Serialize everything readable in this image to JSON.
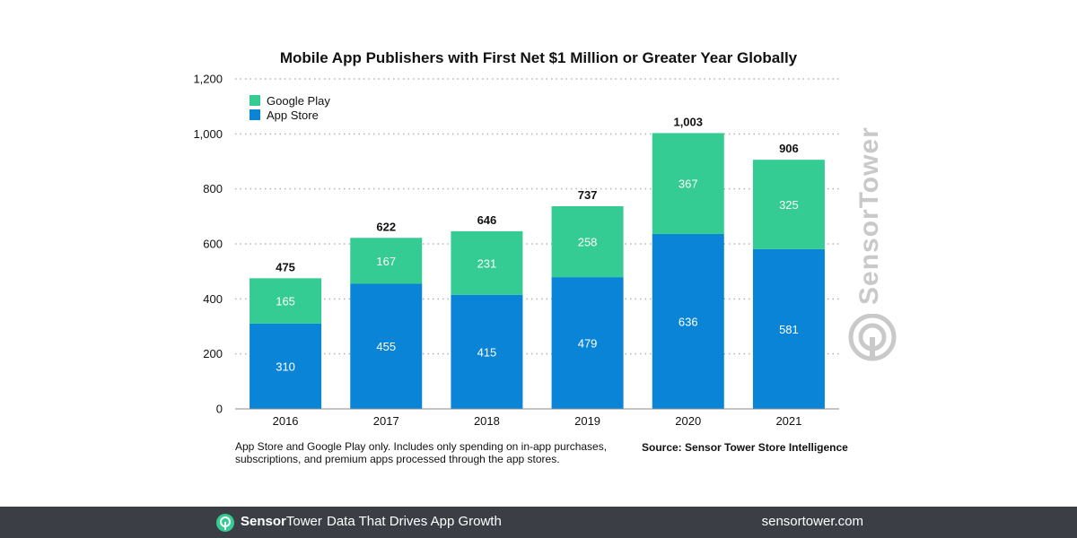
{
  "chart_data": {
    "type": "bar",
    "stacked": true,
    "title": "Mobile App Publishers with First Net $1 Million or Greater Year Globally",
    "categories": [
      "2016",
      "2017",
      "2018",
      "2019",
      "2020",
      "2021"
    ],
    "series": [
      {
        "name": "App Store",
        "color": "#0a84d6",
        "values": [
          310,
          455,
          415,
          479,
          636,
          581
        ]
      },
      {
        "name": "Google Play",
        "color": "#34cc92",
        "values": [
          165,
          167,
          231,
          258,
          367,
          325
        ]
      }
    ],
    "totals": [
      "475",
      "622",
      "646",
      "737",
      "1,003",
      "906"
    ],
    "ylim": [
      0,
      1200
    ],
    "yticks": [
      "0",
      "200",
      "400",
      "600",
      "800",
      "1,000",
      "1,200"
    ],
    "grid": true,
    "legend_position": "top-left"
  },
  "notes": {
    "text": "App Store and Google Play only. Includes only spending on in-app purchases, subscriptions, and premium apps processed through the app stores.",
    "source": "Source: Sensor Tower Store Intelligence"
  },
  "watermark": {
    "text": "SensorTower"
  },
  "footer": {
    "brand_part1": "Sensor",
    "brand_part2": "Tower",
    "tagline": "Data That Drives App Growth",
    "url": "sensortower.com",
    "logo_icon": "sensortower-logo-icon"
  }
}
